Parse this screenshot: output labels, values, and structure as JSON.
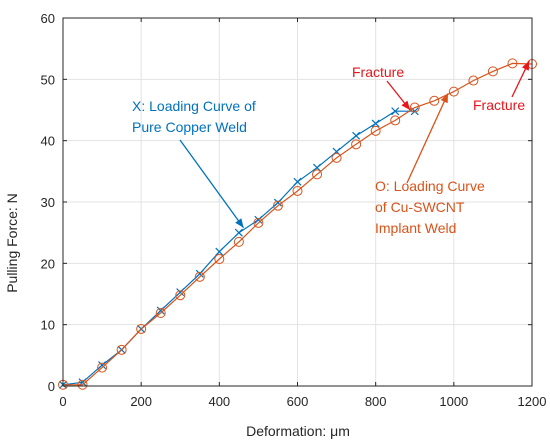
{
  "chart_data": {
    "type": "line",
    "xlabel": "Deformation: μm",
    "ylabel": "Pulling Force: N",
    "xlim": [
      0,
      1200
    ],
    "ylim": [
      0,
      60
    ],
    "xticks": [
      0,
      200,
      400,
      600,
      800,
      1000,
      1200
    ],
    "yticks": [
      0,
      10,
      20,
      30,
      40,
      50,
      60
    ],
    "grid": true,
    "series": [
      {
        "marker": "x",
        "color": "#0072BD",
        "x": [
          0,
          50,
          100,
          150,
          200,
          250,
          300,
          350,
          400,
          450,
          500,
          550,
          600,
          650,
          700,
          750,
          800,
          850,
          900
        ],
        "y": [
          0.2,
          0.6,
          3.4,
          5.9,
          9.3,
          12.3,
          15.3,
          18.3,
          21.9,
          25.0,
          27.1,
          29.9,
          33.3,
          35.6,
          38.2,
          40.8,
          42.8,
          44.8,
          44.8
        ]
      },
      {
        "marker": "o",
        "color": "#D95319",
        "x": [
          0,
          50,
          100,
          150,
          200,
          250,
          300,
          350,
          400,
          450,
          500,
          550,
          600,
          650,
          700,
          750,
          800,
          850,
          900,
          950,
          1000,
          1050,
          1100,
          1150,
          1200
        ],
        "y": [
          0.2,
          0.2,
          3.0,
          5.9,
          9.3,
          11.9,
          14.8,
          17.8,
          20.7,
          23.5,
          26.6,
          29.4,
          31.8,
          34.5,
          37.2,
          39.4,
          41.6,
          43.3,
          45.4,
          46.5,
          48.0,
          49.8,
          51.3,
          52.6,
          52.5
        ]
      }
    ],
    "annotations": {
      "blue_label_line1": "X:  Loading Curve of",
      "blue_label_line2": "Pure Copper Weld",
      "orange_label_line1": "O: Loading Curve",
      "orange_label_line2": "of Cu-SWCNT",
      "orange_label_line3": "Implant Weld",
      "fracture_1": "Fracture",
      "fracture_2": "Fracture"
    },
    "colors": {
      "blue": "#0072BD",
      "orange": "#D95319",
      "red": "#E8161B",
      "grid": "#e3e3e3",
      "axis": "#262626"
    }
  }
}
